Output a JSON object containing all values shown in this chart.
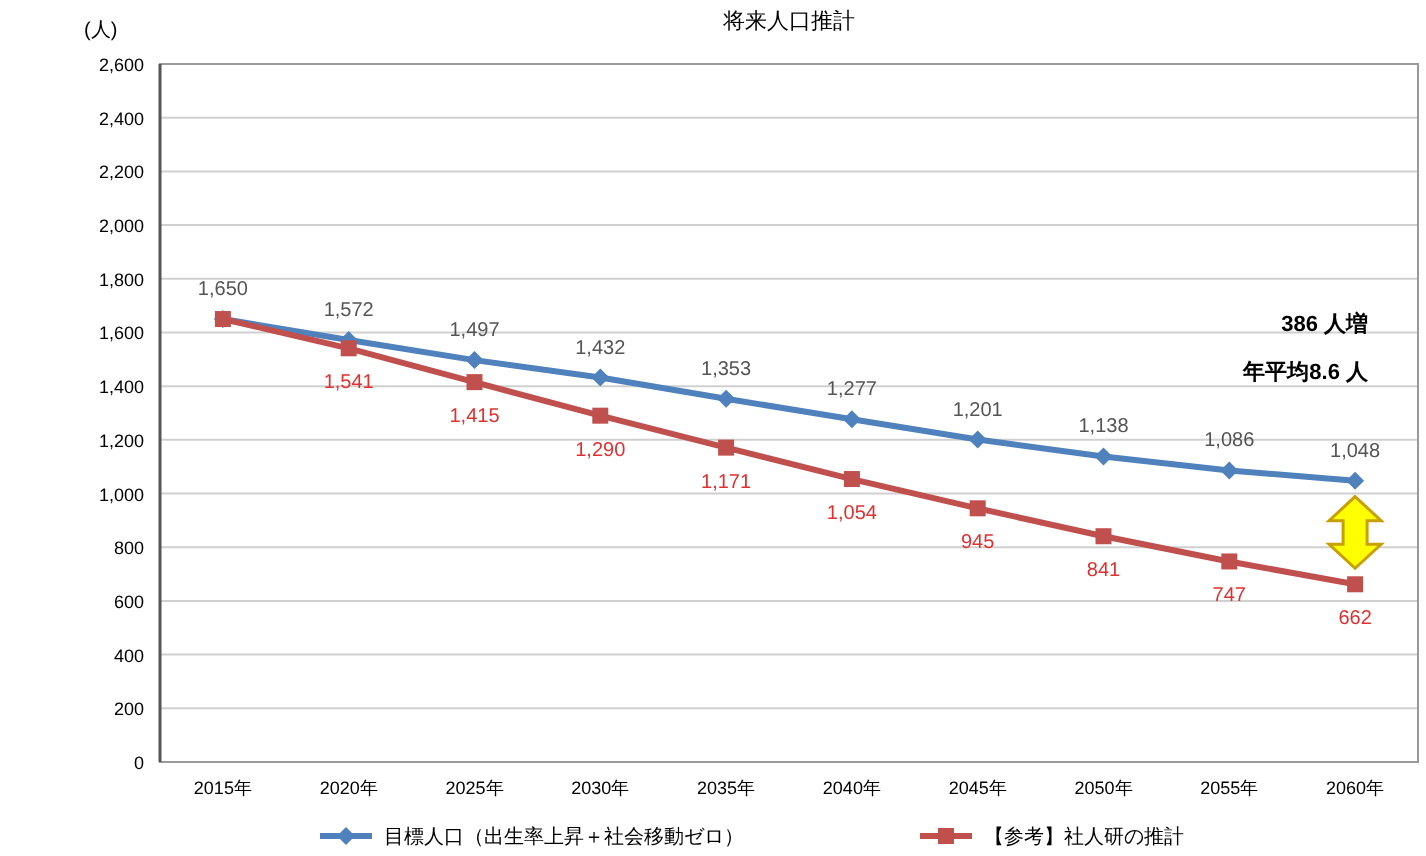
{
  "chart_data": {
    "type": "line",
    "title": "将来人口推計",
    "ylabel": "(人)",
    "categories": [
      "2015年",
      "2020年",
      "2025年",
      "2030年",
      "2035年",
      "2040年",
      "2045年",
      "2050年",
      "2055年",
      "2060年"
    ],
    "series": [
      {
        "name": "目標人口（出生率上昇＋社会移動ゼロ）",
        "color": "#4f81bd",
        "marker": "diamond",
        "values": [
          1650,
          1572,
          1497,
          1432,
          1353,
          1277,
          1201,
          1138,
          1086,
          1048
        ],
        "value_labels": [
          "1,650",
          "1,572",
          "1,497",
          "1,432",
          "1,353",
          "1,277",
          "1,201",
          "1,138",
          "1,086",
          "1,048"
        ]
      },
      {
        "name": "【参考】社人研の推計",
        "color": "#c0504d",
        "marker": "square",
        "values": [
          1650,
          1541,
          1415,
          1290,
          1171,
          1054,
          945,
          841,
          747,
          662
        ],
        "value_labels": [
          null,
          "1,541",
          "1,415",
          "1,290",
          "1,171",
          "1,054",
          "945",
          "841",
          "747",
          "662"
        ]
      }
    ],
    "ylim": [
      0,
      2600
    ],
    "yticks": [
      0,
      200,
      400,
      600,
      800,
      {
        "value": 1000,
        "label": "1,000"
      },
      {
        "value": 1200,
        "label": "1,200"
      },
      {
        "value": 1400,
        "label": "1,400"
      },
      {
        "value": 1600,
        "label": "1,600"
      },
      {
        "value": 1800,
        "label": "1,800"
      },
      {
        "value": 2000,
        "label": "2,000"
      },
      {
        "value": 2200,
        "label": "2,200"
      },
      {
        "value": 2400,
        "label": "2,400"
      },
      {
        "value": 2600,
        "label": "2,600"
      }
    ],
    "grid": "y",
    "legend": "bottom",
    "annotations": [
      "386 人増",
      "年平均8.6 人"
    ]
  }
}
